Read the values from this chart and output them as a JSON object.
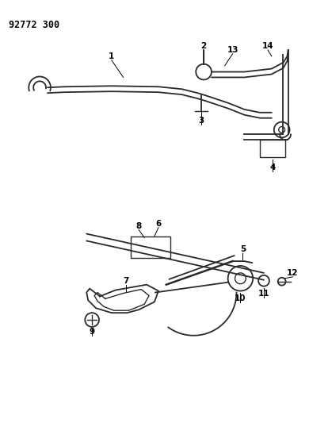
{
  "title": "92772 300",
  "bg_color": "#ffffff",
  "line_color": "#2a2a2a",
  "label_color": "#000000",
  "figsize": [
    3.9,
    5.33
  ],
  "dpi": 100
}
